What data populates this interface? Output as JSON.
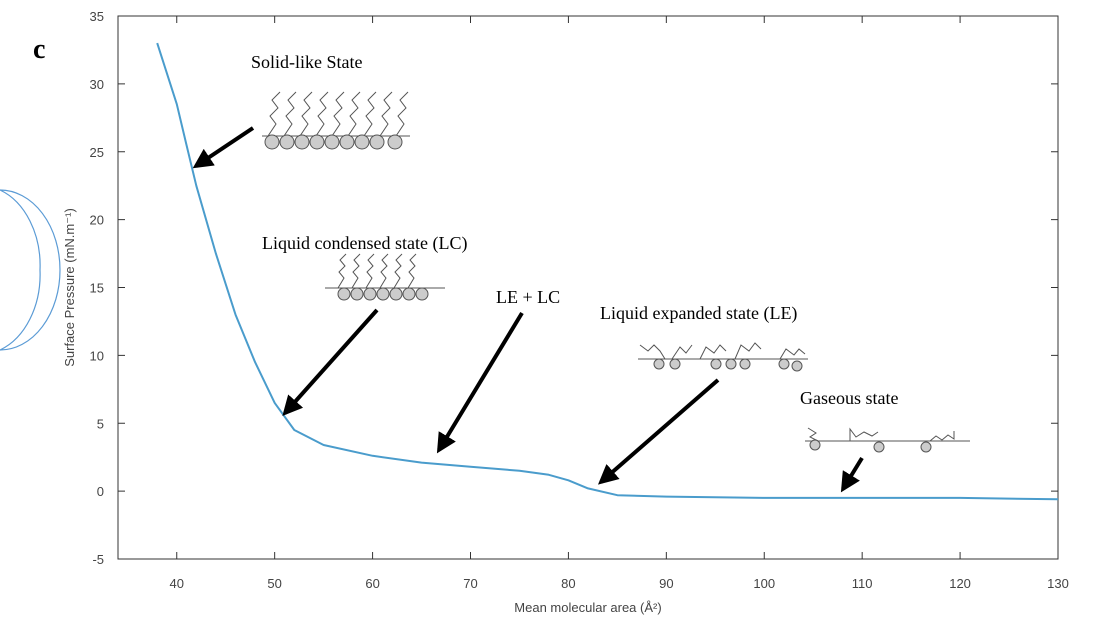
{
  "panel_label": "c",
  "chart_data": {
    "type": "line",
    "xlabel": "Mean molecular area (Å²)",
    "ylabel": "Surface Pressure (mN.m⁻¹)",
    "x": [
      38,
      40,
      41,
      42,
      44,
      46,
      48,
      50,
      52,
      55,
      60,
      65,
      70,
      75,
      78,
      80,
      82,
      85,
      90,
      100,
      110,
      120,
      130
    ],
    "series": [
      {
        "color": "#4a9ccc",
        "values": [
          33,
          28.5,
          25.5,
          22.5,
          17.5,
          13,
          9.5,
          6.5,
          4.5,
          3.4,
          2.6,
          2.1,
          1.8,
          1.5,
          1.2,
          0.8,
          0.2,
          -0.3,
          -0.4,
          -0.5,
          -0.5,
          -0.5,
          -0.6
        ]
      }
    ],
    "xlim": [
      34,
      130
    ],
    "xticks": [
      40,
      50,
      60,
      70,
      80,
      90,
      100,
      110,
      120,
      130
    ],
    "ylim": [
      -5,
      35
    ],
    "yticks": [
      -5,
      0,
      5,
      10,
      15,
      20,
      25,
      30,
      35
    ],
    "grid": false,
    "annotations": [
      "Solid-like State",
      "Liquid condensed state (LC)",
      "LE + LC",
      "Liquid expanded state (LE)",
      "Gaseous state"
    ]
  }
}
